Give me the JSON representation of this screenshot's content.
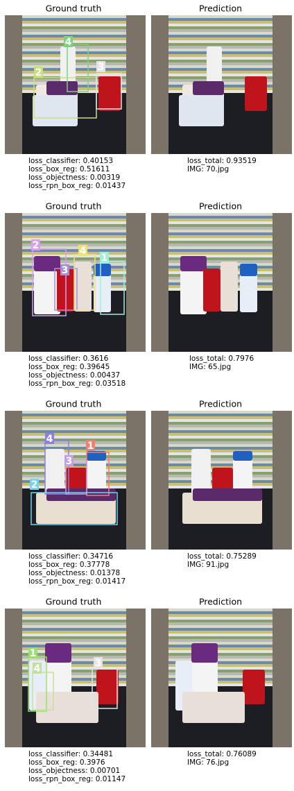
{
  "rows": [
    {
      "gt_title": "Ground truth",
      "pred_title": "Prediction",
      "losses": [
        "loss_classifier: 0.40153",
        "loss_box_reg: 0.51611",
        "loss_objectness: 0.00319",
        "loss_rpn_box_reg: 0.01437"
      ],
      "summary": [
        "loss_total: 0.93519",
        "IMG: 70.jpg"
      ],
      "boxes": [
        {
          "label": "4",
          "color": "#7fd07f"
        },
        {
          "label": "2",
          "color": "#c8e07a"
        },
        {
          "label": "3",
          "color": "#e4e4e4"
        }
      ]
    },
    {
      "gt_title": "Ground truth",
      "pred_title": "Prediction",
      "losses": [
        "loss_classifier: 0.3616",
        "loss_box_reg: 0.39645",
        "loss_objectness: 0.00437",
        "loss_rpn_box_reg: 0.03518"
      ],
      "summary": [
        "loss_total: 0.7976",
        "IMG: 65.jpg"
      ],
      "boxes": [
        {
          "label": "2",
          "color": "#d9a0f0"
        },
        {
          "label": "3",
          "color": "#a58fd6"
        },
        {
          "label": "4",
          "color": "#f0e07a"
        },
        {
          "label": "1",
          "color": "#a0f0d8"
        }
      ]
    },
    {
      "gt_title": "Ground truth",
      "pred_title": "Prediction",
      "losses": [
        "loss_classifier: 0.34716",
        "loss_box_reg: 0.37778",
        "loss_objectness: 0.01378",
        "loss_rpn_box_reg: 0.01417"
      ],
      "summary": [
        "loss_total: 0.75289",
        "IMG: 91.jpg"
      ],
      "boxes": [
        {
          "label": "4",
          "color": "#8c80e0"
        },
        {
          "label": "1",
          "color": "#f07f70"
        },
        {
          "label": "3",
          "color": "#c0a0e4"
        },
        {
          "label": "2",
          "color": "#74d4f0"
        }
      ]
    },
    {
      "gt_title": "Ground truth",
      "pred_title": "Prediction",
      "losses": [
        "loss_classifier: 0.34481",
        "loss_box_reg: 0.3976",
        "loss_objectness: 0.00701",
        "loss_rpn_box_reg: 0.01147"
      ],
      "summary": [
        "loss_total: 0.76089",
        "IMG: 76.jpg"
      ],
      "boxes": [
        {
          "label": "1",
          "color": "#98e070"
        },
        {
          "label": "4",
          "color": "#c4e0a0"
        },
        {
          "label": "3",
          "color": "#e4e4e4"
        }
      ]
    }
  ]
}
